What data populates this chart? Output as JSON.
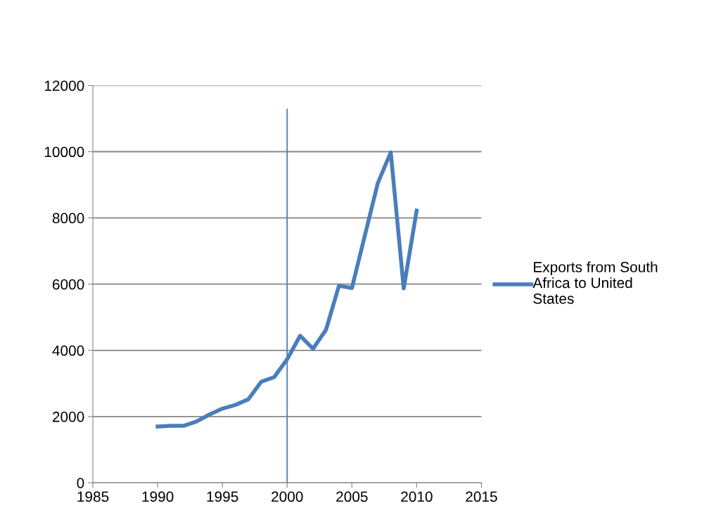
{
  "chart_data": {
    "type": "line",
    "x": [
      1990,
      1991,
      1992,
      1993,
      1994,
      1995,
      1996,
      1997,
      1998,
      1999,
      2000,
      2001,
      2002,
      2003,
      2004,
      2005,
      2006,
      2007,
      2008,
      2009,
      2010
    ],
    "series": [
      {
        "name": "Exports from South Africa to United States",
        "color": "#4a7ebb",
        "values": [
          1700,
          1720,
          1720,
          1850,
          2060,
          2240,
          2350,
          2520,
          3050,
          3190,
          3730,
          4440,
          4050,
          4620,
          5950,
          5880,
          7470,
          9050,
          9980,
          5870,
          8220
        ]
      }
    ],
    "xlim": [
      1985,
      2015
    ],
    "xticks": [
      1985,
      1990,
      1995,
      2000,
      2005,
      2010,
      2015
    ],
    "ylim": [
      0,
      12000
    ],
    "yticks": [
      0,
      2000,
      4000,
      6000,
      8000,
      10000,
      12000
    ],
    "grid": "y",
    "legend": "right",
    "marker": "none",
    "line_style": "solid",
    "ref_lines": [
      {
        "axis": "x",
        "value": 2000,
        "color": "#4a7ebb",
        "line_style": "solid"
      }
    ]
  }
}
